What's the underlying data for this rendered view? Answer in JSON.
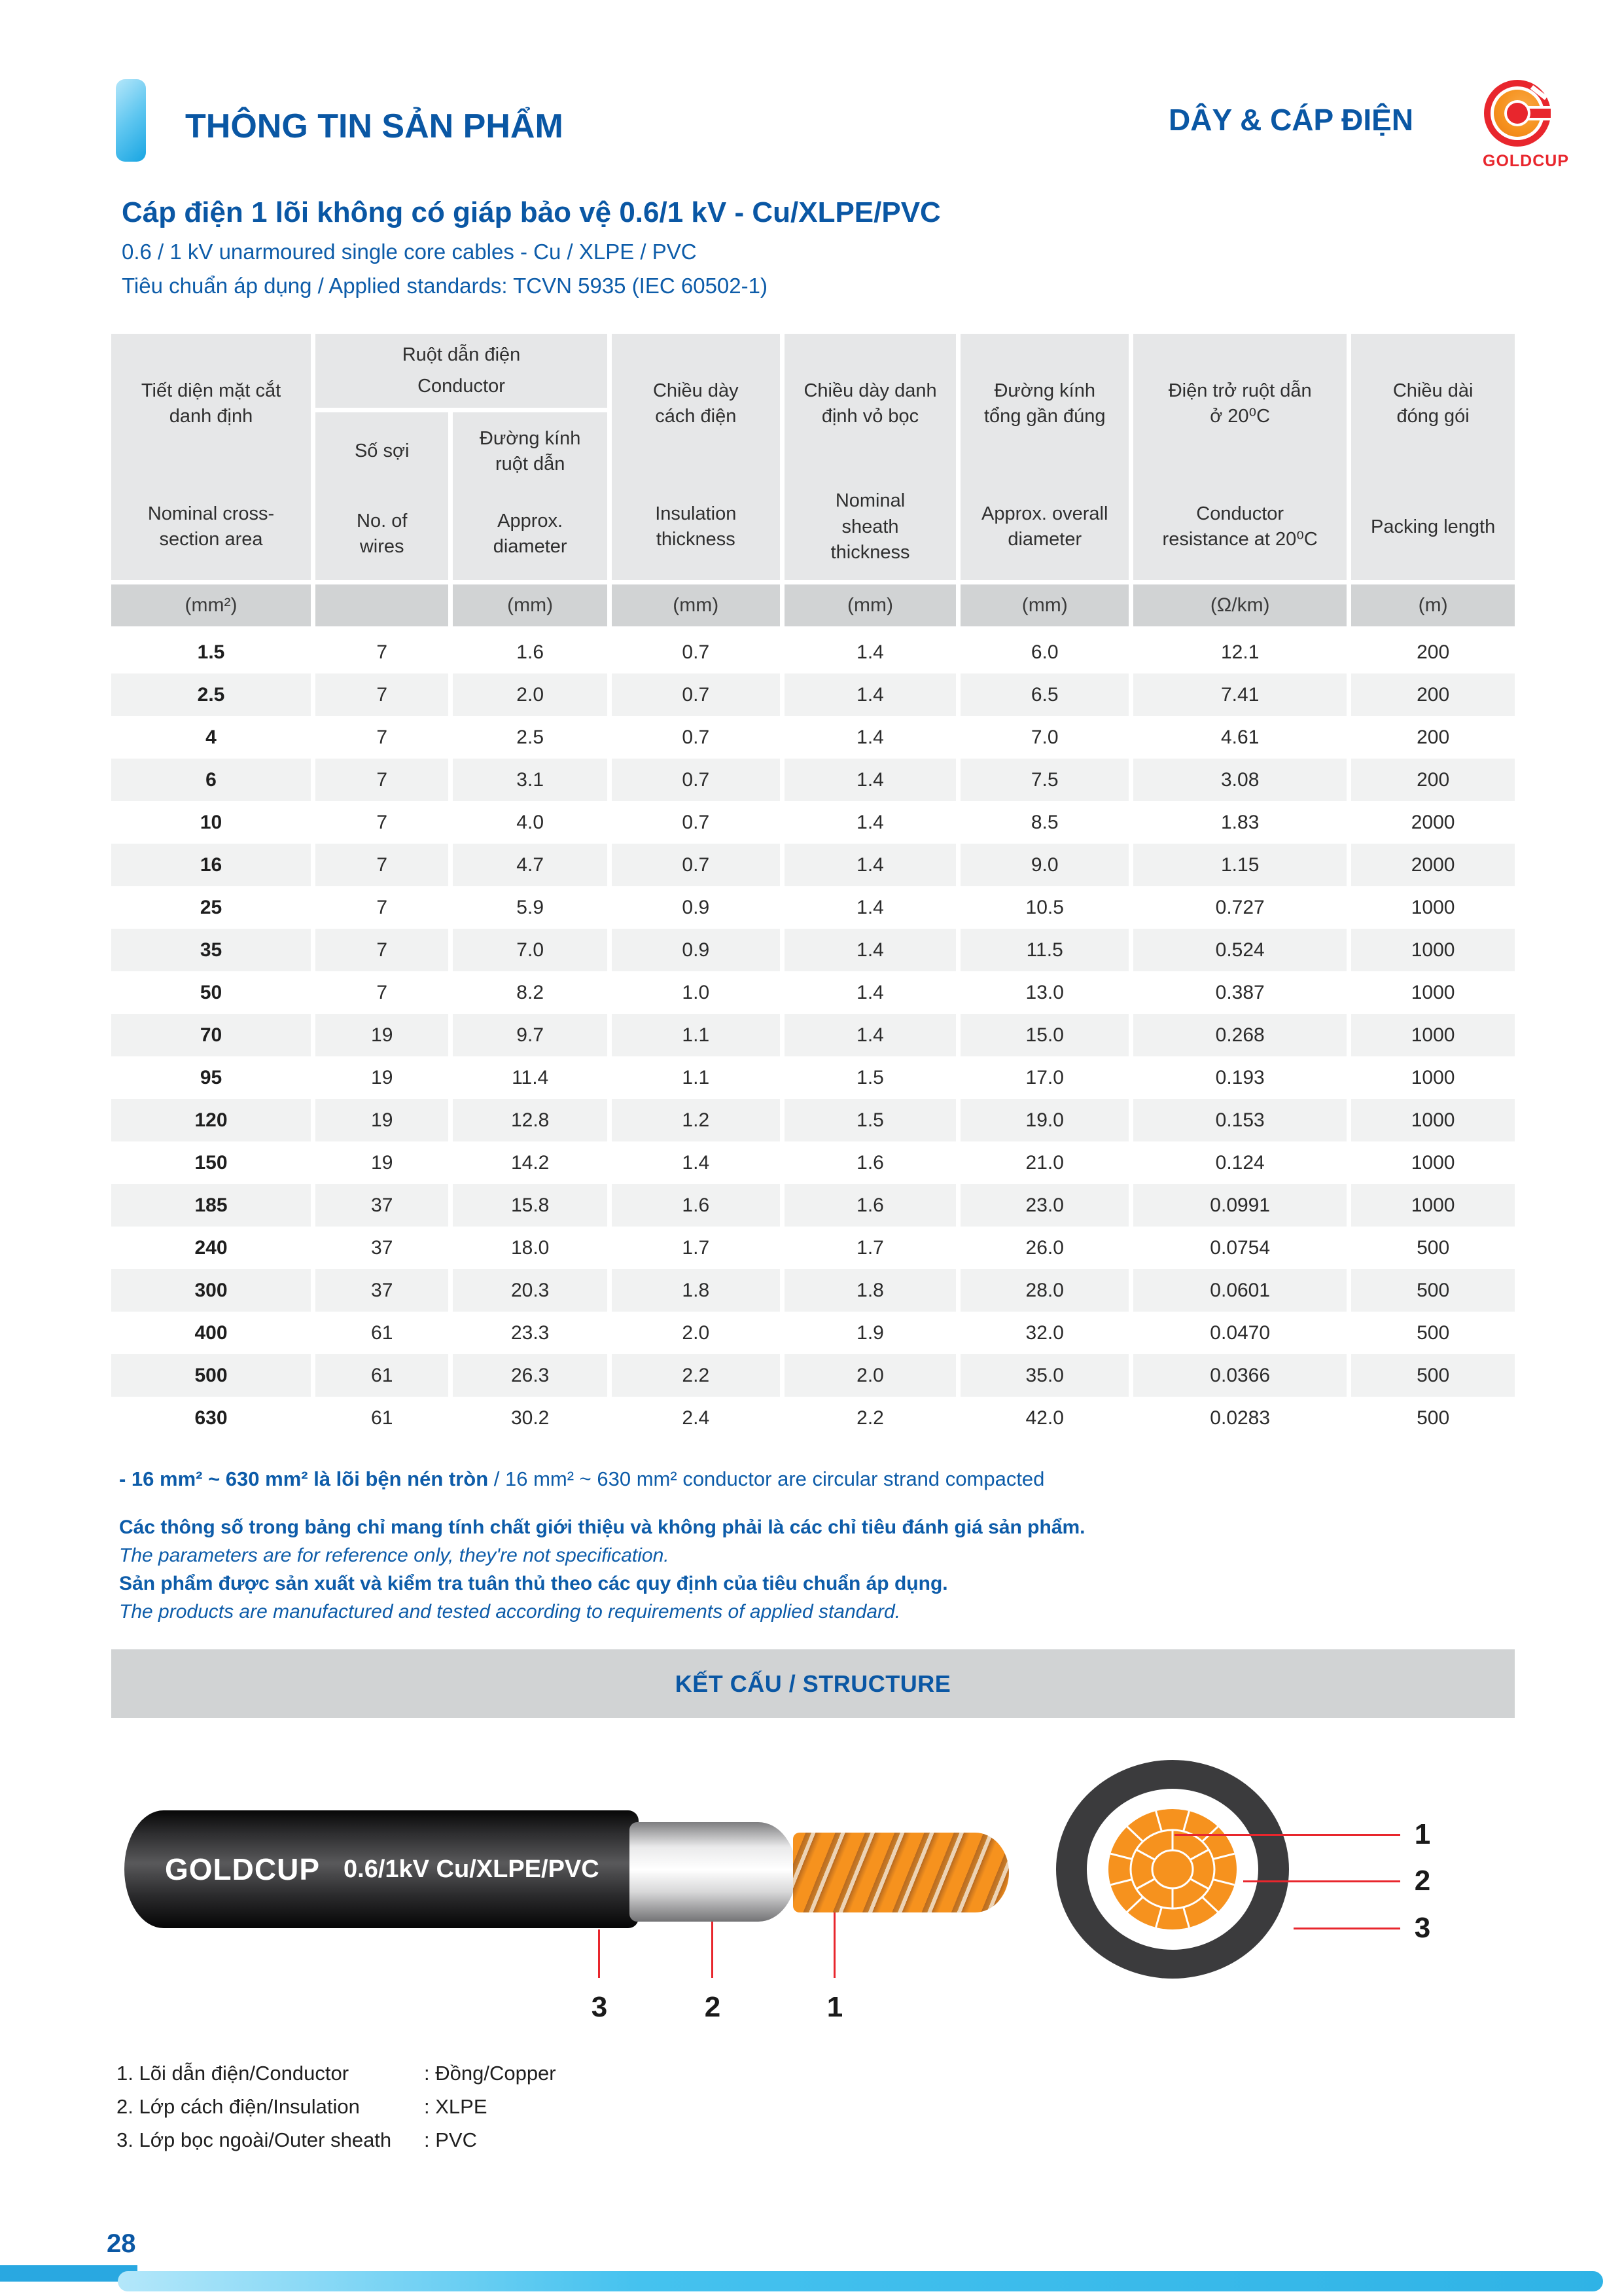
{
  "colors": {
    "primary_blue": "#0a57a4",
    "light_blue_accent": "#29abe2",
    "brand_red": "#e8262d",
    "brand_orange": "#f6921e",
    "table_header_gray": "#e6e7e8",
    "unit_row_gray": "#d1d3d4",
    "row_stripe_gray": "#f1f2f2",
    "banner_gray": "#d1d3d4"
  },
  "header": {
    "section_title": "THÔNG TIN SẢN PHẨM",
    "category_title": "DÂY & CÁP ĐIỆN",
    "logo_text": "GOLDCUP"
  },
  "product": {
    "title": "Cáp điện 1 lõi không có giáp bảo vệ  0.6/1 kV - Cu/XLPE/PVC",
    "subtitle": "0.6 / 1 kV unarmoured single core cables - Cu / XLPE / PVC",
    "standards": "Tiêu chuẩn áp dụng / Applied standards: TCVN 5935 (IEC 60502-1)"
  },
  "table": {
    "headers": {
      "col1": {
        "vi": "Tiết diện mặt cắt\ndanh định",
        "en": "Nominal cross-\nsection area"
      },
      "conductor_group": {
        "vi": "Ruột dẫn điện",
        "en": "Conductor"
      },
      "col2": {
        "vi": "Số sợi",
        "en": "No. of\nwires"
      },
      "col3": {
        "vi": "Đường kính\nruột dẫn",
        "en": "Approx.\ndiameter"
      },
      "col4": {
        "vi": "Chiều dày\ncách điện",
        "en": "Insulation\nthickness"
      },
      "col5": {
        "vi": "Chiều dày danh\nđịnh vỏ bọc",
        "en": "Nominal\nsheath\nthickness"
      },
      "col6": {
        "vi": "Đường kính\ntổng gần đúng",
        "en": "Approx. overall\ndiameter"
      },
      "col7": {
        "vi": "Điện trở ruột dẫn\nở 20⁰C",
        "en": "Conductor\nresistance at 20⁰C"
      },
      "col8": {
        "vi": "Chiều dài\nđóng gói",
        "en": "Packing length"
      }
    },
    "units": [
      "(mm²)",
      "",
      "(mm)",
      "(mm)",
      "(mm)",
      "(mm)",
      "(Ω/km)",
      "(m)"
    ],
    "rows": [
      [
        "1.5",
        "7",
        "1.6",
        "0.7",
        "1.4",
        "6.0",
        "12.1",
        "200"
      ],
      [
        "2.5",
        "7",
        "2.0",
        "0.7",
        "1.4",
        "6.5",
        "7.41",
        "200"
      ],
      [
        "4",
        "7",
        "2.5",
        "0.7",
        "1.4",
        "7.0",
        "4.61",
        "200"
      ],
      [
        "6",
        "7",
        "3.1",
        "0.7",
        "1.4",
        "7.5",
        "3.08",
        "200"
      ],
      [
        "10",
        "7",
        "4.0",
        "0.7",
        "1.4",
        "8.5",
        "1.83",
        "2000"
      ],
      [
        "16",
        "7",
        "4.7",
        "0.7",
        "1.4",
        "9.0",
        "1.15",
        "2000"
      ],
      [
        "25",
        "7",
        "5.9",
        "0.9",
        "1.4",
        "10.5",
        "0.727",
        "1000"
      ],
      [
        "35",
        "7",
        "7.0",
        "0.9",
        "1.4",
        "11.5",
        "0.524",
        "1000"
      ],
      [
        "50",
        "7",
        "8.2",
        "1.0",
        "1.4",
        "13.0",
        "0.387",
        "1000"
      ],
      [
        "70",
        "19",
        "9.7",
        "1.1",
        "1.4",
        "15.0",
        "0.268",
        "1000"
      ],
      [
        "95",
        "19",
        "11.4",
        "1.1",
        "1.5",
        "17.0",
        "0.193",
        "1000"
      ],
      [
        "120",
        "19",
        "12.8",
        "1.2",
        "1.5",
        "19.0",
        "0.153",
        "1000"
      ],
      [
        "150",
        "19",
        "14.2",
        "1.4",
        "1.6",
        "21.0",
        "0.124",
        "1000"
      ],
      [
        "185",
        "37",
        "15.8",
        "1.6",
        "1.6",
        "23.0",
        "0.0991",
        "1000"
      ],
      [
        "240",
        "37",
        "18.0",
        "1.7",
        "1.7",
        "26.0",
        "0.0754",
        "500"
      ],
      [
        "300",
        "37",
        "20.3",
        "1.8",
        "1.8",
        "28.0",
        "0.0601",
        "500"
      ],
      [
        "400",
        "61",
        "23.3",
        "2.0",
        "1.9",
        "32.0",
        "0.0470",
        "500"
      ],
      [
        "500",
        "61",
        "26.3",
        "2.2",
        "2.0",
        "35.0",
        "0.0366",
        "500"
      ],
      [
        "630",
        "61",
        "30.2",
        "2.4",
        "2.2",
        "42.0",
        "0.0283",
        "500"
      ]
    ]
  },
  "notes": {
    "line1_bold": "- 16 mm² ~ 630 mm² là lõi bện nén tròn",
    "line1_rest": " / 16 mm² ~ 630 mm² conductor are circular strand compacted",
    "line2": "Các thông số trong bảng chỉ mang tính chất giới thiệu và không phải là các chỉ tiêu đánh giá sản phẩm.",
    "line3": "The parameters are for reference only, they're not specification.",
    "line4": "Sản phẩm được sản xuất và kiểm tra tuân thủ theo các quy định của tiêu chuẩn áp dụng.",
    "line5": "The products are manufactured and tested according to requirements of applied standard."
  },
  "structure": {
    "banner": "KẾT CẤU / STRUCTURE",
    "cable_brand": "GOLDCUP",
    "cable_spec": "0.6/1kV Cu/XLPE/PVC",
    "cable_callouts": [
      "3",
      "2",
      "1"
    ],
    "cross_callouts": [
      "1",
      "2",
      "3"
    ],
    "legend": [
      {
        "label": "1. Lõi dẫn điện/Conductor",
        "value": ": Đồng/Copper"
      },
      {
        "label": "2. Lớp cách điện/Insulation",
        "value": ": XLPE"
      },
      {
        "label": "3. Lớp bọc ngoài/Outer sheath",
        "value": ": PVC"
      }
    ]
  },
  "footer": {
    "page_number": "28"
  }
}
